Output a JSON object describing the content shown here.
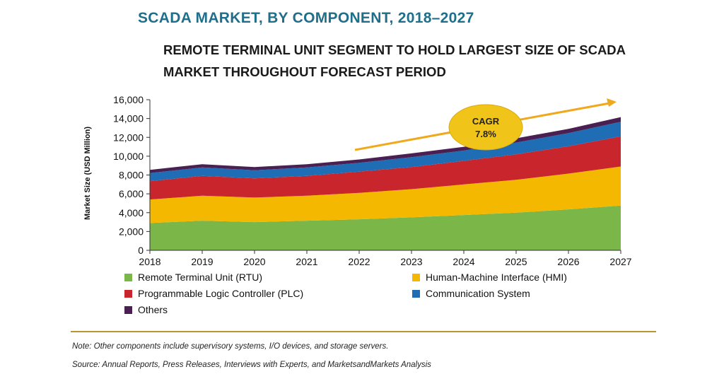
{
  "title": "SCADA MARKET, BY COMPONENT, 2018–2027",
  "subtitle": "REMOTE TERMINAL UNIT SEGMENT TO HOLD LARGEST SIZE OF SCADA MARKET THROUGHOUT FORECAST PERIOD",
  "cagr": {
    "label": "CAGR",
    "value": "7.8%",
    "color": "#f0c419",
    "arrow_color": "#f0a81c"
  },
  "note": "Note: Other components include supervisory systems, I/O devices, and storage servers.",
  "source": "Source: Annual Reports, Press Releases, Interviews with Experts, and MarketsandMarkets Analysis",
  "chart_data": {
    "type": "area",
    "stacked": true,
    "ylabel": "Market Size (USD Million)",
    "xlabel": "",
    "ylim": [
      0,
      16000
    ],
    "y_ticks": [
      "0",
      "2,000",
      "4,000",
      "6,000",
      "8,000",
      "10,000",
      "12,000",
      "14,000",
      "16,000"
    ],
    "y_tick_values": [
      0,
      2000,
      4000,
      6000,
      8000,
      10000,
      12000,
      14000,
      16000
    ],
    "categories": [
      "2018",
      "2019",
      "2020",
      "2021",
      "2022",
      "2023",
      "2024",
      "2025",
      "2026",
      "2027"
    ],
    "legend_placement": "bottom",
    "grid": false,
    "series": [
      {
        "name": "Remote Terminal Unit (RTU)",
        "color": "#7ab648",
        "values": [
          2900,
          3150,
          3000,
          3150,
          3300,
          3500,
          3750,
          4000,
          4350,
          4750
        ]
      },
      {
        "name": "Human-Machine Interface (HMI)",
        "color": "#f5b800",
        "values": [
          2500,
          2650,
          2600,
          2650,
          2800,
          3000,
          3250,
          3500,
          3800,
          4150
        ]
      },
      {
        "name": "Programmable Logic Controller (PLC)",
        "color": "#c9252c",
        "values": [
          1950,
          2100,
          2050,
          2100,
          2250,
          2350,
          2500,
          2700,
          2900,
          3200
        ]
      },
      {
        "name": "Communication System",
        "color": "#1f6db5",
        "values": [
          850,
          900,
          850,
          900,
          950,
          1050,
          1100,
          1250,
          1400,
          1550
        ]
      },
      {
        "name": "Others",
        "color": "#4a1f52",
        "values": [
          350,
          350,
          350,
          350,
          350,
          400,
          400,
          450,
          450,
          500
        ]
      }
    ]
  }
}
